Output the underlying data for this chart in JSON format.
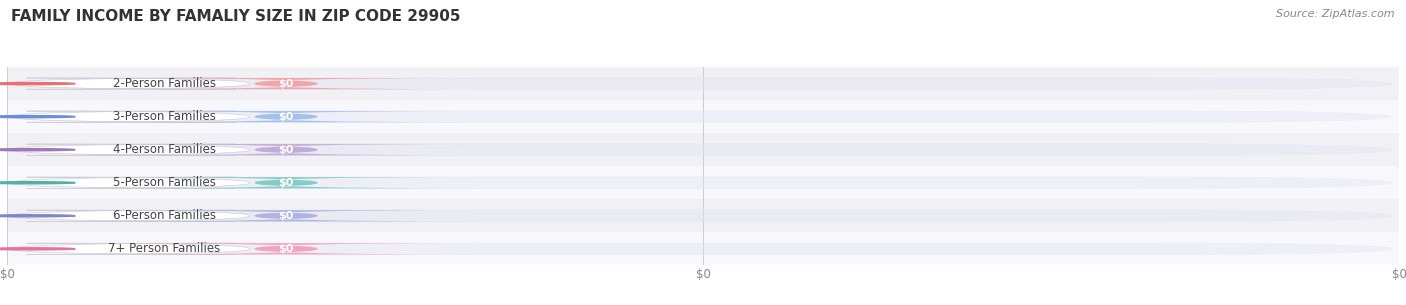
{
  "title": "FAMILY INCOME BY FAMALIY SIZE IN ZIP CODE 29905",
  "source": "Source: ZipAtlas.com",
  "categories": [
    "2-Person Families",
    "3-Person Families",
    "4-Person Families",
    "5-Person Families",
    "6-Person Families",
    "7+ Person Families"
  ],
  "values": [
    0,
    0,
    0,
    0,
    0,
    0
  ],
  "bar_colors": [
    "#EF9FA0",
    "#9BBCE8",
    "#BFA5D5",
    "#7DC8C0",
    "#A8AEDD",
    "#F09DB8"
  ],
  "dot_colors": [
    "#E87070",
    "#6A8ED8",
    "#9E78BE",
    "#50B0A8",
    "#8088C4",
    "#E870A0"
  ],
  "row_colors": [
    "#f0f0f5",
    "#f8f8fc",
    "#f0f0f5",
    "#f8f8fc",
    "#f0f0f5",
    "#f8f8fc"
  ],
  "title_fontsize": 11,
  "label_fontsize": 8.5,
  "value_fontsize": 8,
  "source_fontsize": 8
}
